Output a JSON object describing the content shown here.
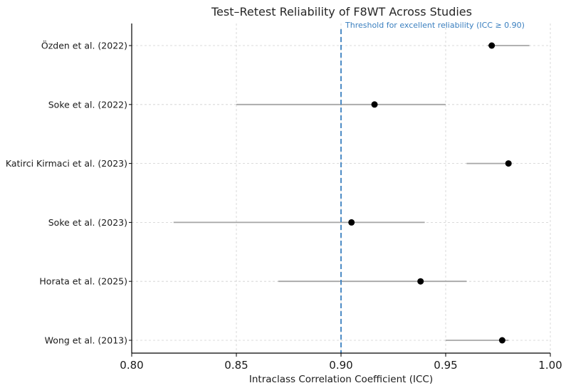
{
  "chart_data": {
    "type": "scatter",
    "title": "Test–Retest Reliability of F8WT Across Studies",
    "xlabel": "Intraclass Correlation Coefficient (ICC)",
    "ylabel": "",
    "xlim": [
      0.8,
      1.0
    ],
    "xticks": [
      "0.80",
      "0.85",
      "0.90",
      "0.95",
      "1.00"
    ],
    "grid": true,
    "studies": [
      {
        "label": "Özden et al. (2022)",
        "icc": 0.972,
        "ci": [
          0.97,
          0.99
        ]
      },
      {
        "label": "Soke et al. (2022)",
        "icc": 0.916,
        "ci": [
          0.85,
          0.95
        ]
      },
      {
        "label": "Katirci Kirmaci et al. (2023)",
        "icc": 0.98,
        "ci": [
          0.96,
          0.98
        ]
      },
      {
        "label": "Soke et al. (2023)",
        "icc": 0.905,
        "ci": [
          0.82,
          0.94
        ]
      },
      {
        "label": "Horata et al. (2025)",
        "icc": 0.938,
        "ci": [
          0.87,
          0.96
        ]
      },
      {
        "label": "Wong et al. (2013)",
        "icc": 0.977,
        "ci": [
          0.95,
          0.98
        ]
      }
    ],
    "threshold": {
      "value": 0.9,
      "label": "Threshold for excellent reliability (ICC ≥ 0.90)",
      "style": "dashed"
    },
    "colors": {
      "point": "#000000",
      "ci_line": "#a6a6a6",
      "threshold": "#3a7fbf",
      "grid": "#cfcfcf"
    }
  }
}
